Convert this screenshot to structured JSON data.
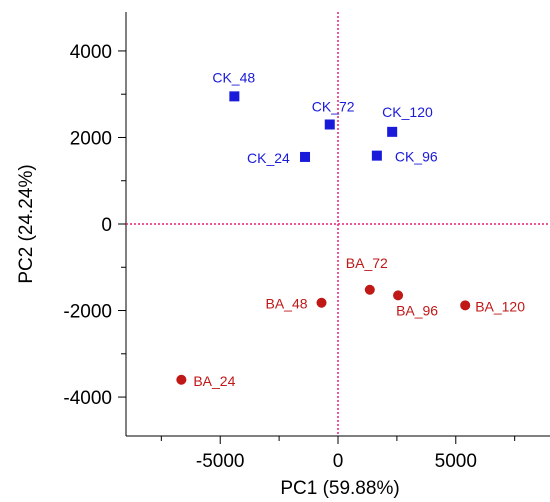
{
  "chart_data": {
    "type": "scatter",
    "xlabel": "PC1 (59.88%)",
    "ylabel": "PC2 (24.24%)",
    "xlim": [
      -9000,
      9000
    ],
    "ylim": [
      -4900,
      4900
    ],
    "xticks": [
      -5000,
      0,
      5000
    ],
    "yticks": [
      -4000,
      -2000,
      0,
      2000,
      4000
    ],
    "x_tick_labels": [
      "-5000",
      "0",
      "5000"
    ],
    "y_tick_labels": [
      "-4000",
      "-2000",
      "0",
      "2000",
      "4000"
    ],
    "reference_lines": {
      "x": 0,
      "y": 0,
      "color": "#e8207a",
      "style": "dotted"
    },
    "series": [
      {
        "group": "CK",
        "marker": "square",
        "color": "#1a1adb",
        "points": [
          {
            "label": "CK_48",
            "x": -4400,
            "y": 2950
          },
          {
            "label": "CK_72",
            "x": -350,
            "y": 2300
          },
          {
            "label": "CK_120",
            "x": 2300,
            "y": 2130
          },
          {
            "label": "CK_24",
            "x": -1400,
            "y": 1550
          },
          {
            "label": "CK_96",
            "x": 1650,
            "y": 1580
          }
        ]
      },
      {
        "group": "BA",
        "marker": "circle",
        "color": "#c01717",
        "points": [
          {
            "label": "BA_72",
            "x": 1350,
            "y": -1520
          },
          {
            "label": "BA_48",
            "x": -700,
            "y": -1820
          },
          {
            "label": "BA_96",
            "x": 2550,
            "y": -1650
          },
          {
            "label": "BA_120",
            "x": 5400,
            "y": -1880
          },
          {
            "label": "BA_24",
            "x": -6650,
            "y": -3600
          }
        ]
      }
    ]
  }
}
